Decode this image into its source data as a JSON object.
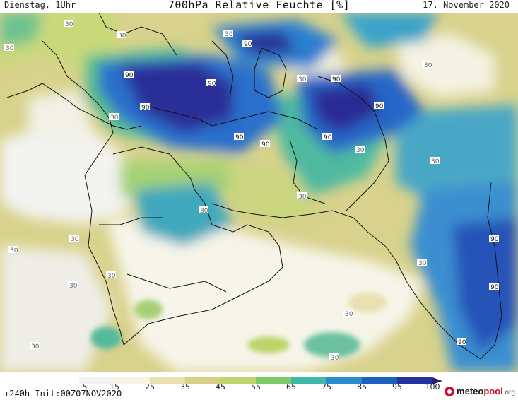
{
  "header": {
    "left": "Dienstag, 1Uhr",
    "title": "700hPa Relative Feuchte [%]",
    "right": "17. November 2020"
  },
  "footer": {
    "run": "+240h Init:00Z07NOV2020",
    "brand_a": "meteo",
    "brand_b": "pool",
    "brand_c": ".org"
  },
  "legend": {
    "ticks": [
      "5",
      "15",
      "25",
      "35",
      "45",
      "55",
      "65",
      "75",
      "85",
      "95",
      "100"
    ],
    "colors": [
      "#f2f2f2",
      "#f7f4e4",
      "#e9e0b0",
      "#d6cf86",
      "#bcd46a",
      "#7fc96b",
      "#3fb8a8",
      "#2a8bcf",
      "#1f5fc0",
      "#2332a0",
      "#2a1d78"
    ]
  },
  "map": {
    "contour_labels": [
      "30",
      "90"
    ]
  }
}
